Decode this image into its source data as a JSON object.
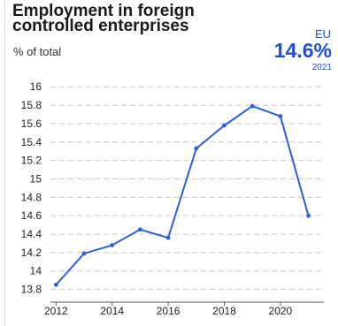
{
  "header": {
    "title": "Employment in foreign controlled enterprises",
    "unit": "% of total",
    "region": "EU",
    "headline_value": "14.6%",
    "headline_year": "2021"
  },
  "colors": {
    "series": "#2f5fd6",
    "accent_text": "#1d4ed8",
    "grid": "#c8c8c8"
  },
  "chart_data": {
    "type": "line",
    "title": "Employment in foreign controlled enterprises",
    "xlabel": "",
    "ylabel": "% of total",
    "x": [
      2012,
      2013,
      2014,
      2015,
      2016,
      2017,
      2018,
      2019,
      2020,
      2021
    ],
    "series": [
      {
        "values": [
          13.85,
          14.19,
          14.28,
          14.45,
          14.36,
          15.33,
          15.58,
          15.79,
          15.68,
          14.6
        ]
      }
    ],
    "xlim": [
      2011.8,
      2021.55
    ],
    "ylim": [
      13.7,
      16.05
    ],
    "x_ticks": [
      "2012",
      "2014",
      "2016",
      "2018",
      "2020"
    ],
    "y_ticks": [
      "13.8",
      "14",
      "14.2",
      "14.4",
      "14.6",
      "14.8",
      "15",
      "15.2",
      "15.4",
      "15.6",
      "15.8",
      "16"
    ],
    "grid": "horizontal dashed",
    "legend": "none"
  }
}
